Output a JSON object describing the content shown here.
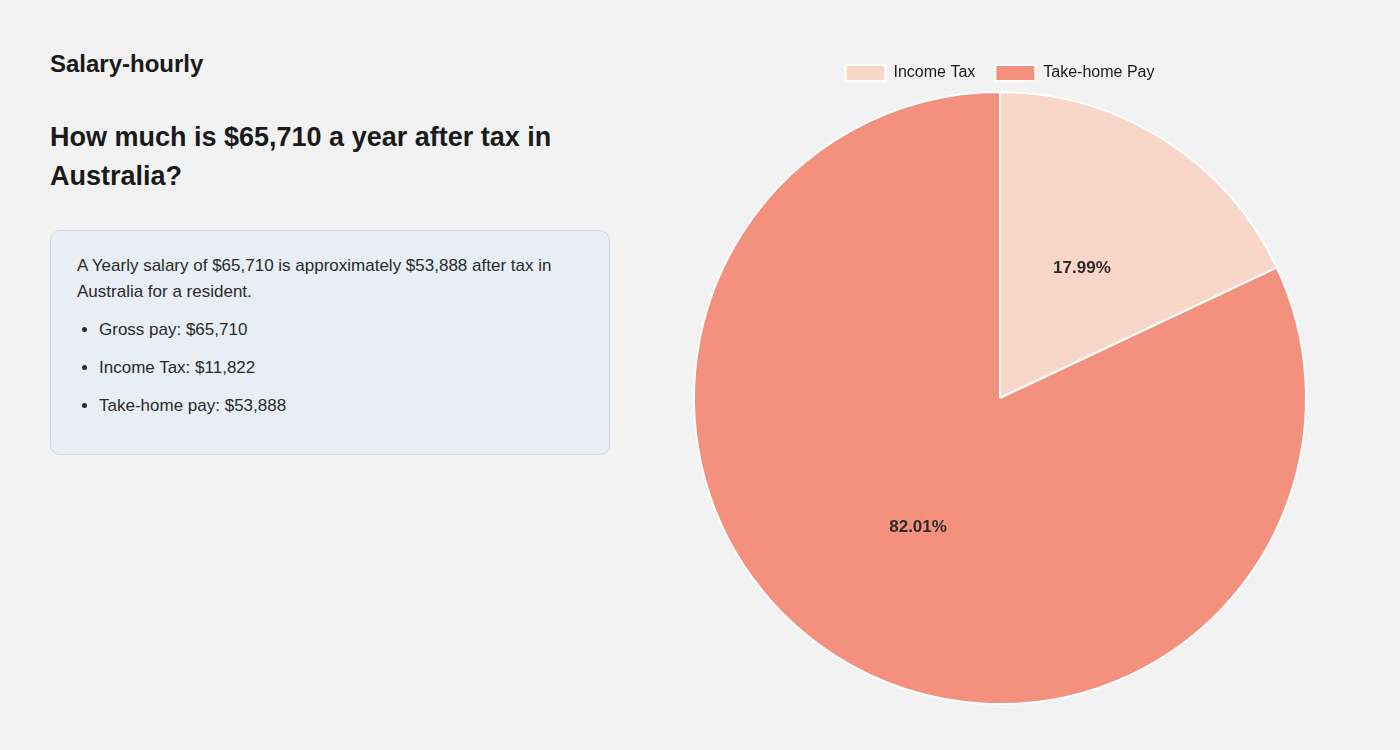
{
  "chart_data": {
    "type": "pie",
    "title": [
      "How much is $65,710 a year after tax in",
      "Australia?"
    ],
    "categories": [
      "Income Tax",
      "Take-home Pay"
    ],
    "values": [
      17.99,
      82.01
    ],
    "value_labels": [
      "17.99%",
      "82.01%"
    ],
    "colors": [
      "#f8d7c8",
      "#f4917e"
    ],
    "data_labels": true,
    "legend": "top",
    "annotations": [
      "Salary-hourly",
      "A Yearly salary of $65,710 is approximately $53,888 after tax in",
      "Australia for a resident.",
      "Gross pay: $65,710",
      "Income Tax: $11,822",
      "Take-home pay: $53,888"
    ]
  }
}
